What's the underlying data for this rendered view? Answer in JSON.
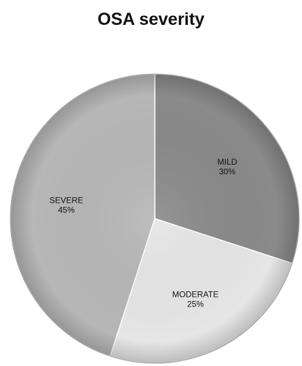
{
  "chart_data": {
    "type": "pie",
    "title": "OSA severity",
    "slices": [
      {
        "label": "MILD",
        "value": 30,
        "display": "30%",
        "color": "#8a8a8a"
      },
      {
        "label": "MODERATE",
        "value": 25,
        "display": "25%",
        "color": "#e6e6e6"
      },
      {
        "label": "SEVERE",
        "value": 45,
        "display": "45%",
        "color": "#b7b7b7"
      }
    ],
    "start": "12 o'clock",
    "direction": "clockwise",
    "legend": "none"
  }
}
